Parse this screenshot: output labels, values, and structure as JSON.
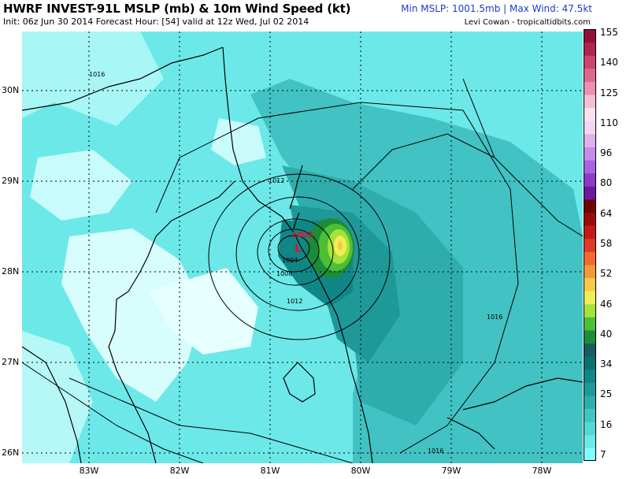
{
  "header": {
    "title": "HWRF INVEST-91L MSLP (mb) & 10m Wind Speed (kt)",
    "subtitle": "Init: 06z Jun 30 2014 Forecast Hour: [54] valid at 12z Wed, Jul 02 2014",
    "stats": "Min MSLP: 1001.5mb | Max Wind: 47.5kt",
    "credit": "Levi Cowan - tropicaltidbits.com"
  },
  "map": {
    "lat_labels": [
      "30N",
      "29N",
      "28N",
      "27N",
      "26N"
    ],
    "lon_labels": [
      "83W",
      "82W",
      "81W",
      "80W",
      "79W",
      "78W"
    ],
    "low_marker": "L",
    "low_pressure_label": "1002",
    "isobar_labels": [
      "1004",
      "1008",
      "1012",
      "1012",
      "1016",
      "1016",
      "1016"
    ]
  },
  "colorbar": {
    "labels": [
      "155",
      "140",
      "125",
      "110",
      "96",
      "80",
      "64",
      "58",
      "52",
      "46",
      "40",
      "34",
      "25",
      "16",
      "7"
    ],
    "colors": [
      "#7fffff",
      "#6ce8e8",
      "#57d6d6",
      "#42c2c2",
      "#2fadad",
      "#1f9898",
      "#108686",
      "#0a7070",
      "#1a5c5c",
      "#1d8c3a",
      "#4cbf35",
      "#a6e23a",
      "#ecef55",
      "#f7c948",
      "#f29a3a",
      "#ef6b2f",
      "#e03a2a",
      "#c41a1a",
      "#9a0c0c",
      "#6e0505",
      "#6a1a9a",
      "#8a3bc8",
      "#a864de",
      "#c58be6",
      "#dcb2ec",
      "#efd6f2",
      "#f7e2ee",
      "#f2c0d3",
      "#e993b0",
      "#dc6a8f",
      "#cc4470",
      "#b22350",
      "#931038"
    ]
  }
}
